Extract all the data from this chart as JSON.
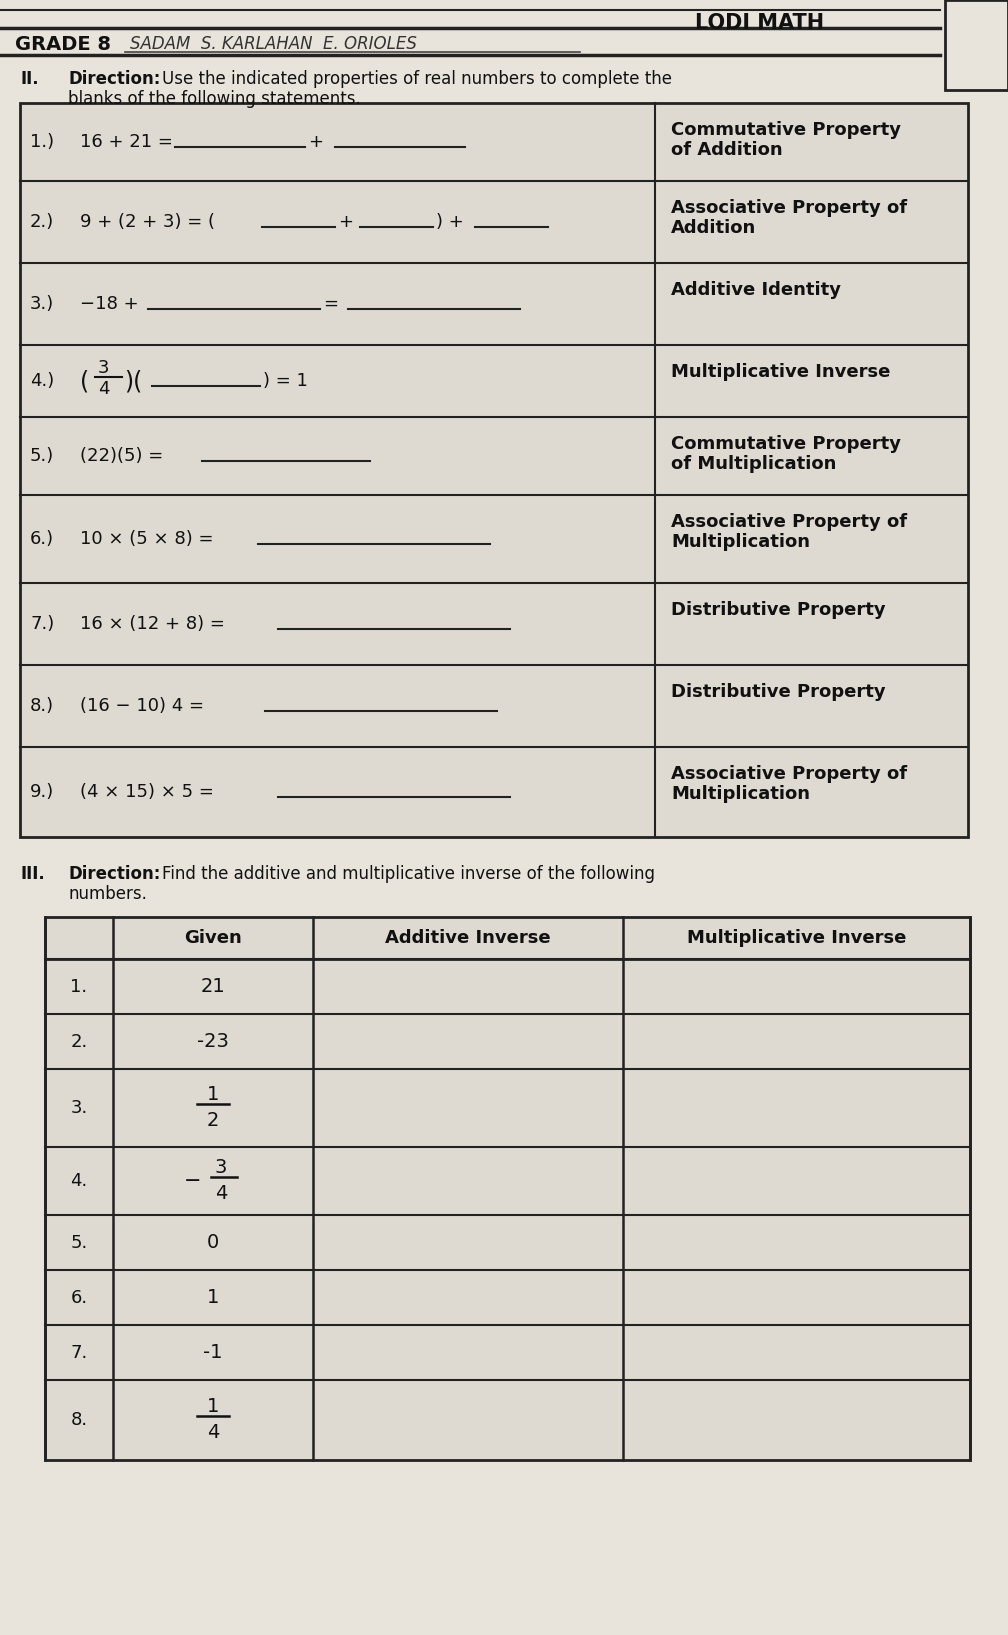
{
  "header_title": "LODI MATH",
  "bg_color": "#c8c4bc",
  "paper_color": "#e8e4dc",
  "table_color": "#dedad2",
  "line_color": "#222222",
  "text_color": "#111111",
  "table1_rows": [
    {
      "num": "1.)",
      "prop": "Commutative Property\nof Addition"
    },
    {
      "num": "2.)",
      "prop": "Associative Property of\nAddition"
    },
    {
      "num": "3.)",
      "prop": "Additive Identity"
    },
    {
      "num": "4.)",
      "prop": "Multiplicative Inverse"
    },
    {
      "num": "5.)",
      "prop": "Commutative Property\nof Multiplication"
    },
    {
      "num": "6.)",
      "prop": "Associative Property of\nMultiplication"
    },
    {
      "num": "7.)",
      "prop": "Distributive Property"
    },
    {
      "num": "8.)",
      "prop": "Distributive Property"
    },
    {
      "num": "9.)",
      "prop": "Associative Property of\nMultiplication"
    }
  ],
  "table2_rows": [
    {
      "n": "1.",
      "given": "21"
    },
    {
      "n": "2.",
      "given": "-23"
    },
    {
      "n": "3.",
      "given": "frac_1_2"
    },
    {
      "n": "4.",
      "given": "frac_neg3_4"
    },
    {
      "n": "5.",
      "given": "0"
    },
    {
      "n": "6.",
      "given": "1"
    },
    {
      "n": "7.",
      "given": "-1"
    },
    {
      "n": "8.",
      "given": "frac_1_4"
    }
  ]
}
